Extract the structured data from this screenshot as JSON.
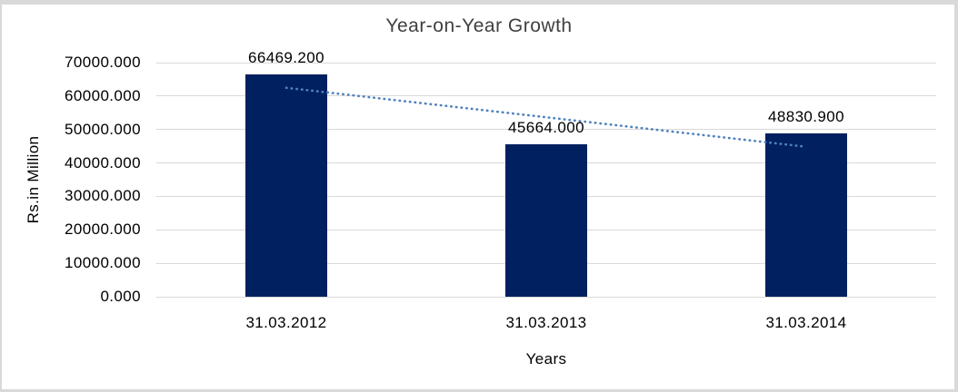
{
  "chart_data": {
    "type": "bar",
    "title": "Year-on-Year Growth",
    "xlabel": "Years",
    "ylabel": "Rs.in Million",
    "categories": [
      "31.03.2012",
      "31.03.2013",
      "31.03.2014"
    ],
    "values": [
      66469.2,
      45664.0,
      48830.9
    ],
    "value_labels": [
      "66469.200",
      "45664.000",
      "48830.900"
    ],
    "ylim": [
      0,
      70000
    ],
    "ytick_step": 10000,
    "ytick_labels": [
      "0.000",
      "10000.000",
      "20000.000",
      "30000.000",
      "40000.000",
      "50000.000",
      "60000.000",
      "70000.000"
    ],
    "grid": true,
    "legend": false,
    "trendline": {
      "type": "linear",
      "style": "dotted",
      "y_start": 62474,
      "y_end": 44836
    }
  },
  "colors": {
    "bar": "#002060",
    "gridline": "#d9d9d9",
    "frame_border": "#d9d9d9",
    "trendline": "#4f81bd",
    "title_text": "#3f3f3f",
    "axis_text": "#000000",
    "background": "#ffffff"
  }
}
